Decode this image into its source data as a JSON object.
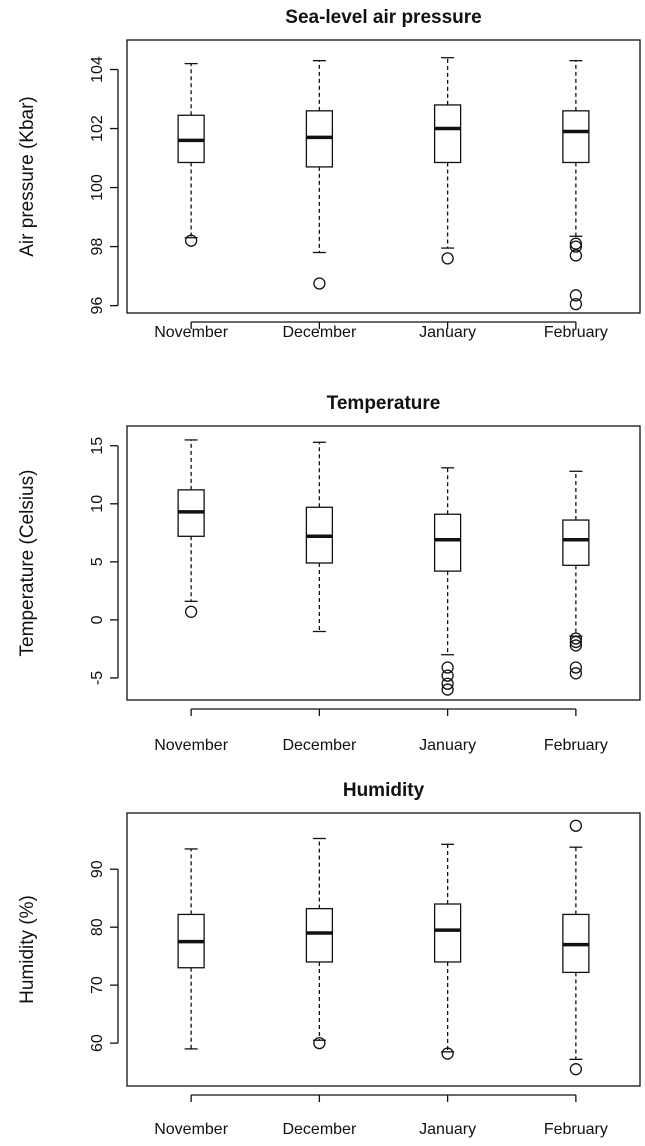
{
  "chart_data": [
    {
      "type": "box",
      "title": "Sea-level air pressure",
      "y_label": "Air pressure (Kbar)",
      "categories": [
        "November",
        "December",
        "January",
        "February"
      ],
      "whisker_low": [
        98.3,
        97.8,
        97.95,
        98.35
      ],
      "q1": [
        100.85,
        100.7,
        100.85,
        100.85
      ],
      "median": [
        101.6,
        101.7,
        102.0,
        101.9
      ],
      "q3": [
        102.45,
        102.6,
        102.8,
        102.6
      ],
      "whisker_high": [
        104.2,
        104.3,
        104.4,
        104.3
      ],
      "outliers": [
        [
          98.2
        ],
        [
          96.75
        ],
        [
          97.6
        ],
        [
          98.1,
          98.0,
          97.7,
          96.35,
          96.05
        ]
      ],
      "ylim": [
        95.75,
        105
      ],
      "yticks": [
        96,
        98,
        100,
        102,
        104
      ]
    },
    {
      "type": "box",
      "title": "Temperature",
      "y_label": "Temperature (Celsius)",
      "categories": [
        "November",
        "December",
        "January",
        "February"
      ],
      "whisker_low": [
        1.6,
        -1.0,
        -3.0,
        -1.4
      ],
      "q1": [
        7.2,
        4.9,
        4.2,
        4.7
      ],
      "median": [
        9.3,
        7.2,
        6.9,
        6.9
      ],
      "q3": [
        11.2,
        9.7,
        9.1,
        8.6
      ],
      "whisker_high": [
        15.5,
        15.3,
        13.1,
        12.8
      ],
      "outliers": [
        [
          0.7
        ],
        [],
        [
          -4.1,
          -4.8,
          -5.5,
          -6.0
        ],
        [
          -1.6,
          -1.9,
          -2.2,
          -4.1,
          -4.6
        ]
      ],
      "ylim": [
        -6.9,
        16.7
      ],
      "yticks": [
        -5,
        0,
        5,
        10,
        15
      ]
    },
    {
      "type": "box",
      "title": "Humidity",
      "y_label": "Humidity (%)",
      "categories": [
        "November",
        "December",
        "January",
        "February"
      ],
      "whisker_low": [
        59,
        60.5,
        58.5,
        57.2
      ],
      "q1": [
        73,
        74,
        74,
        72.2
      ],
      "median": [
        77.5,
        79,
        79.5,
        77
      ],
      "q3": [
        82.2,
        83.2,
        84,
        82.2
      ],
      "whisker_high": [
        93.5,
        95.3,
        94.3,
        93.8
      ],
      "outliers": [
        [],
        [
          60
        ],
        [
          58.2
        ],
        [
          97.5,
          55.5
        ]
      ],
      "ylim": [
        52.6,
        99.7
      ],
      "yticks": [
        60,
        70,
        80,
        90
      ]
    }
  ]
}
